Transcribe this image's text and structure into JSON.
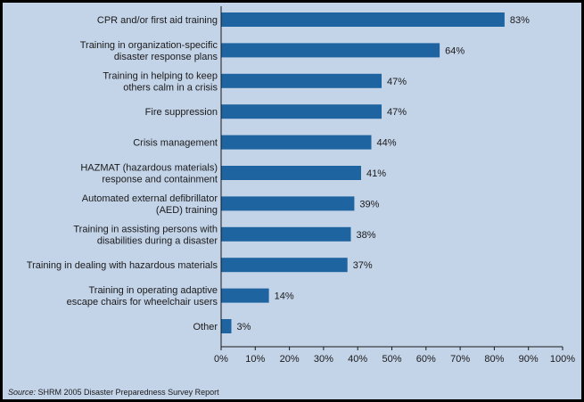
{
  "chart_data": {
    "type": "bar",
    "orientation": "horizontal",
    "categories": [
      "CPR and/or first aid training",
      "Training in organization-specific\ndisaster response plans",
      "Training in helping to keep\nothers calm in a crisis",
      "Fire suppression",
      "Crisis management",
      "HAZMAT (hazardous materials)\nresponse and containment",
      "Automated external defibrillator\n(AED) training",
      "Training in assisting persons with\ndisabilities during a disaster",
      "Training in dealing with hazardous materials",
      "Training in operating adaptive\nescape chairs for wheelchair users",
      "Other"
    ],
    "values": [
      83,
      64,
      47,
      47,
      44,
      41,
      39,
      38,
      37,
      14,
      3
    ],
    "value_labels": [
      "83%",
      "64%",
      "47%",
      "47%",
      "44%",
      "41%",
      "39%",
      "38%",
      "37%",
      "14%",
      "3%"
    ],
    "xlim": [
      0,
      100
    ],
    "x_ticks": [
      "0%",
      "10%",
      "20%",
      "30%",
      "40%",
      "50%",
      "60%",
      "70%",
      "80%",
      "90%",
      "100%"
    ],
    "grid": false,
    "colors": {
      "bar": "#1e64a0",
      "background": "#c3d3e8",
      "border": "#000000"
    }
  },
  "source": {
    "prefix": "Source:",
    "text": " SHRM 2005 Disaster Preparedness Survey Report"
  }
}
